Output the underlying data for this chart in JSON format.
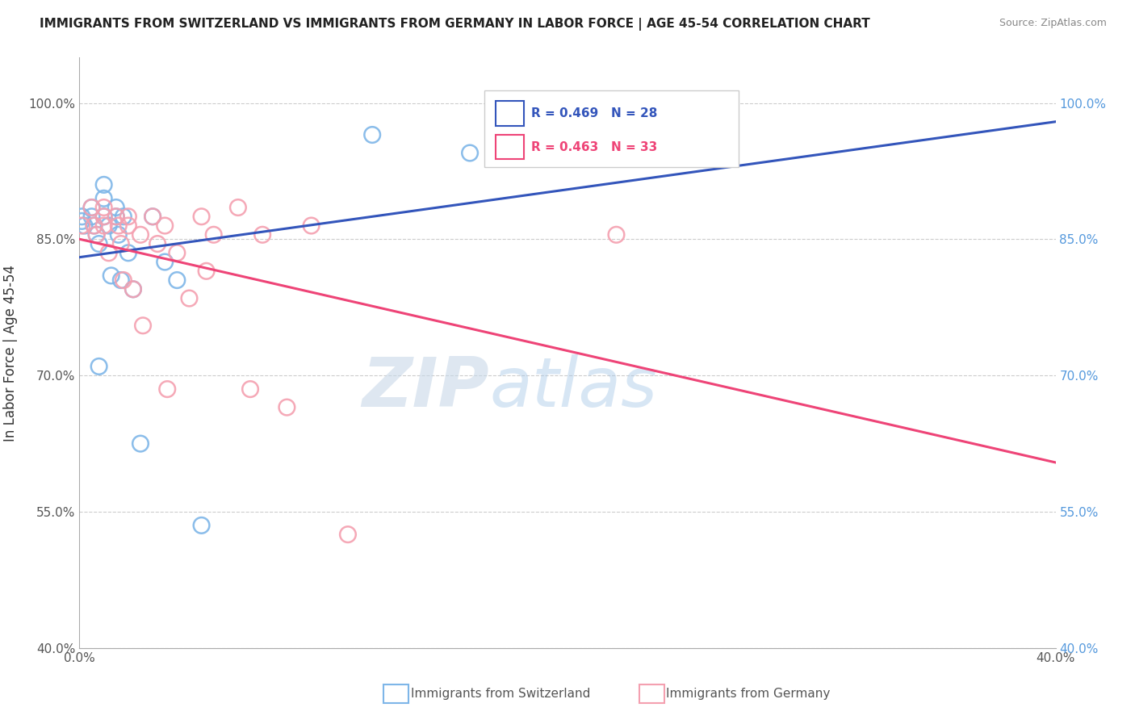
{
  "title": "IMMIGRANTS FROM SWITZERLAND VS IMMIGRANTS FROM GERMANY IN LABOR FORCE | AGE 45-54 CORRELATION CHART",
  "source": "Source: ZipAtlas.com",
  "xlabel_bottom": "Immigrants from Switzerland",
  "xlabel_bottom2": "Immigrants from Germany",
  "ylabel": "In Labor Force | Age 45-54",
  "xlim": [
    0.0,
    0.4
  ],
  "ylim": [
    0.4,
    1.05
  ],
  "x_ticks": [
    0.0,
    0.05,
    0.1,
    0.15,
    0.2,
    0.25,
    0.3,
    0.35,
    0.4
  ],
  "x_tick_labels": [
    "0.0%",
    "",
    "",
    "",
    "",
    "",
    "",
    "",
    "40.0%"
  ],
  "y_ticks": [
    0.4,
    0.55,
    0.7,
    0.85,
    1.0
  ],
  "y_tick_labels_left": [
    "40.0%",
    "55.0%",
    "70.0%",
    "85.0%",
    "100.0%"
  ],
  "y_tick_labels_right": [
    "40.0%",
    "55.0%",
    "70.0%",
    "85.0%",
    "100.0%"
  ],
  "r_switzerland": 0.469,
  "n_switzerland": 28,
  "r_germany": 0.463,
  "n_germany": 33,
  "color_switzerland": "#7EB6E8",
  "color_germany": "#F4A0B0",
  "line_color_switzerland": "#3355BB",
  "line_color_germany": "#EE4477",
  "switzerland_x": [
    0.001,
    0.001,
    0.002,
    0.005,
    0.005,
    0.006,
    0.007,
    0.008,
    0.008,
    0.01,
    0.01,
    0.01,
    0.012,
    0.013,
    0.015,
    0.015,
    0.016,
    0.017,
    0.018,
    0.02,
    0.022,
    0.025,
    0.03,
    0.035,
    0.04,
    0.05,
    0.12,
    0.16
  ],
  "switzerland_y": [
    0.875,
    0.87,
    0.865,
    0.885,
    0.875,
    0.865,
    0.855,
    0.845,
    0.71,
    0.91,
    0.895,
    0.875,
    0.865,
    0.81,
    0.885,
    0.875,
    0.855,
    0.805,
    0.875,
    0.835,
    0.795,
    0.625,
    0.875,
    0.825,
    0.805,
    0.535,
    0.965,
    0.945
  ],
  "germany_x": [
    0.001,
    0.005,
    0.006,
    0.007,
    0.01,
    0.01,
    0.01,
    0.012,
    0.015,
    0.016,
    0.017,
    0.018,
    0.02,
    0.02,
    0.022,
    0.025,
    0.026,
    0.03,
    0.032,
    0.035,
    0.036,
    0.04,
    0.045,
    0.05,
    0.052,
    0.055,
    0.065,
    0.07,
    0.075,
    0.085,
    0.095,
    0.11,
    0.22
  ],
  "germany_y": [
    0.865,
    0.885,
    0.865,
    0.855,
    0.885,
    0.875,
    0.865,
    0.835,
    0.875,
    0.865,
    0.845,
    0.805,
    0.875,
    0.865,
    0.795,
    0.855,
    0.755,
    0.875,
    0.845,
    0.865,
    0.685,
    0.835,
    0.785,
    0.875,
    0.815,
    0.855,
    0.885,
    0.685,
    0.855,
    0.665,
    0.865,
    0.525,
    0.855
  ],
  "watermark_zip": "ZIP",
  "watermark_atlas": "atlas",
  "background_color": "#FFFFFF",
  "grid_color": "#CCCCCC"
}
